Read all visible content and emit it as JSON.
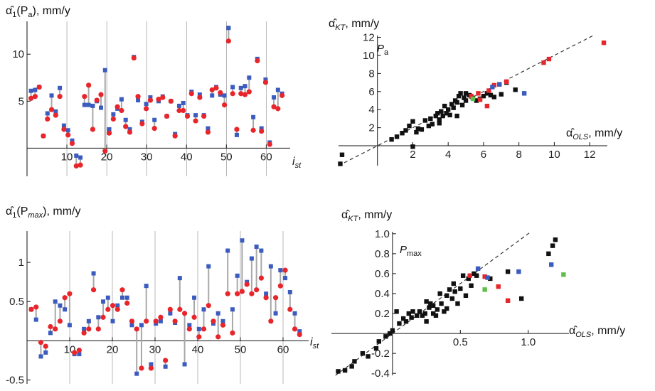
{
  "colors": {
    "blue": "#3b5bbf",
    "red": "#e8252a",
    "black": "#111111",
    "green": "#5fbf4a",
    "connector": "#a8a8a8",
    "grid": "#8a8a8a"
  },
  "chart_data": [
    {
      "type": "scatter",
      "ylabel_main": "α̂",
      "ylabel_sub": "1",
      "ylabel_arg": "(P",
      "ylabel_arg_sub": "a",
      "ylabel_unit": "), mm/y",
      "xlabel_main": "i",
      "xlabel_sub": "st",
      "xlim": [
        0,
        66
      ],
      "ylim": [
        -3,
        13.5
      ],
      "xticks": [
        10,
        20,
        30,
        40,
        50,
        60
      ],
      "yticks": [
        5,
        10
      ],
      "series": [
        {
          "name": "blue",
          "values": [
            6.1,
            6.2,
            6.5,
            1.3,
            3.7,
            5.6,
            3.9,
            6.4,
            2.4,
            1.9,
            0.8,
            -0.8,
            -1.0,
            4.6,
            4.6,
            4.5,
            5.0,
            4.3,
            8.3,
            2.0,
            3.6,
            4.2,
            5.2,
            3.0,
            2.0,
            9.7,
            5.1,
            2.8,
            4.7,
            5.4,
            3.0,
            5.0,
            5.5,
            3.4,
            5.0,
            1.5,
            4.5,
            4.8,
            3.5,
            6.0,
            3.5,
            5.7,
            3.5,
            2.1,
            5.6,
            6.5,
            5.7,
            5.6,
            12.8,
            6.5,
            1.4,
            6.4,
            6.6,
            7.5,
            3.3,
            9.5,
            2.1,
            7.3,
            0.6,
            5.4,
            6.2,
            5.8
          ]
        },
        {
          "name": "red",
          "values": [
            5.3,
            5.5,
            6.5,
            1.3,
            3.1,
            4.1,
            3.5,
            5.5,
            2.0,
            1.4,
            0.5,
            -1.9,
            -1.8,
            5.5,
            6.7,
            2.0,
            5.1,
            5.7,
            -0.3,
            1.6,
            3.1,
            4.4,
            4.0,
            2.3,
            1.7,
            9.6,
            5.5,
            2.6,
            4.2,
            5.1,
            2.1,
            5.2,
            5.4,
            3.4,
            5.0,
            1.3,
            4.0,
            4.0,
            3.4,
            5.8,
            2.9,
            5.4,
            3.4,
            1.7,
            6.2,
            6.4,
            5.9,
            4.6,
            11.4,
            5.8,
            2.0,
            5.8,
            5.7,
            6.0,
            1.9,
            9.3,
            1.8,
            7.0,
            0.4,
            4.4,
            4.2,
            5.6
          ]
        }
      ]
    },
    {
      "type": "scatter",
      "ylabel_main": "α̂",
      "ylabel_sub": "KT",
      "ylabel_unit": ", mm/y",
      "xlabel_main": "α̂",
      "xlabel_sub": "OLS",
      "xlabel_unit": ", mm/y",
      "inset_main": "P",
      "inset_sub": "a",
      "xlim": [
        -2.2,
        13
      ],
      "ylim": [
        -2.2,
        12.2
      ],
      "xticks": [
        2,
        4,
        6,
        8,
        10,
        12
      ],
      "yticks": [
        2,
        4,
        6,
        8,
        10,
        12
      ],
      "diagonal": true,
      "series": [
        {
          "name": "black",
          "points": [
            [
              0.8,
              0.7
            ],
            [
              1.1,
              1.0
            ],
            [
              1.4,
              1.4
            ],
            [
              1.6,
              1.7
            ],
            [
              1.8,
              2.2
            ],
            [
              2.0,
              2.7
            ],
            [
              2.3,
              1.9
            ],
            [
              2.5,
              1.8
            ],
            [
              2.7,
              2.8
            ],
            [
              2.9,
              2.2
            ],
            [
              3.0,
              3.0
            ],
            [
              3.1,
              2.4
            ],
            [
              3.3,
              3.3
            ],
            [
              3.4,
              3.6
            ],
            [
              3.5,
              2.9
            ],
            [
              3.6,
              3.8
            ],
            [
              3.7,
              3.3
            ],
            [
              3.8,
              4.4
            ],
            [
              3.9,
              3.6
            ],
            [
              4.0,
              4.0
            ],
            [
              4.1,
              3.4
            ],
            [
              4.2,
              4.6
            ],
            [
              4.3,
              4.2
            ],
            [
              4.4,
              5.0
            ],
            [
              4.5,
              4.8
            ],
            [
              4.6,
              5.5
            ],
            [
              4.7,
              5.8
            ],
            [
              4.8,
              4.5
            ],
            [
              4.9,
              5.3
            ],
            [
              5.0,
              5.0
            ],
            [
              5.2,
              5.6
            ],
            [
              5.4,
              5.3
            ],
            [
              5.6,
              5.0
            ],
            [
              5.8,
              5.2
            ],
            [
              6.0,
              5.5
            ],
            [
              6.2,
              5.8
            ],
            [
              6.4,
              5.6
            ],
            [
              6.6,
              5.4
            ],
            [
              7.0,
              5.7
            ],
            [
              7.3,
              7.0
            ],
            [
              7.8,
              6.2
            ],
            [
              3.5,
              2.5
            ],
            [
              4.5,
              3.3
            ],
            [
              5.0,
              5.8
            ],
            [
              2.2,
              1.5
            ],
            [
              -2.0,
              -1.0
            ],
            [
              -2.1,
              -2.0
            ],
            [
              2.0,
              -0.1
            ]
          ]
        },
        {
          "name": "red",
          "points": [
            [
              5.8,
              5.1
            ],
            [
              5.7,
              5.8
            ],
            [
              5.3,
              5.5
            ],
            [
              6.6,
              6.7
            ],
            [
              6.9,
              6.8
            ],
            [
              7.3,
              7.1
            ],
            [
              6.2,
              4.4
            ],
            [
              9.4,
              9.2
            ],
            [
              9.7,
              9.6
            ],
            [
              12.8,
              11.4
            ],
            [
              6.3,
              6.1
            ]
          ]
        },
        {
          "name": "blue",
          "points": [
            [
              8.3,
              5.8
            ],
            [
              6.5,
              6.5
            ],
            [
              6.9,
              6.8
            ]
          ]
        },
        {
          "name": "green",
          "points": [
            [
              5.4,
              5.2
            ]
          ]
        }
      ]
    },
    {
      "type": "scatter",
      "ylabel_main": "α̂",
      "ylabel_sub": "1",
      "ylabel_arg": "(P",
      "ylabel_arg_sub": "max",
      "ylabel_unit": "), mm/y",
      "xlabel_main": "i",
      "xlabel_sub": "st",
      "xlim": [
        0,
        66
      ],
      "ylim": [
        -0.55,
        1.4
      ],
      "xticks": [
        10,
        20,
        30,
        40,
        50,
        60
      ],
      "yticks": [
        -0.5,
        0.5,
        1.0
      ],
      "series": [
        {
          "name": "blue",
          "values": [
            0.4,
            0.27,
            -0.2,
            -0.15,
            0.1,
            0.5,
            0.45,
            0.4,
            0.2,
            -0.17,
            -0.17,
            0.15,
            0.25,
            0.86,
            0.3,
            0.5,
            0.55,
            0.25,
            0.45,
            0.55,
            0.55,
            0.2,
            -0.42,
            0.2,
            0.7,
            -0.3,
            0.22,
            0.25,
            -0.33,
            0.35,
            0.23,
            0.8,
            -0.3,
            0.2,
            0.55,
            0.15,
            0.4,
            0.95,
            0.22,
            0.35,
            0.25,
            1.15,
            0.4,
            0.83,
            1.28,
            0.75,
            1.05,
            1.2,
            1.15,
            0.6,
            0.95,
            0.35,
            0.9,
            0.8,
            0.62,
            0.35,
            0.12
          ]
        },
        {
          "name": "red",
          "values": [
            0.4,
            0.43,
            -0.02,
            -0.07,
            0.18,
            0.15,
            0.25,
            0.55,
            0.6,
            -0.15,
            -0.12,
            0.1,
            0.15,
            0.65,
            0.15,
            0.3,
            0.4,
            0.45,
            0.4,
            0.65,
            0.48,
            0.25,
            0.15,
            -0.35,
            0.25,
            -0.35,
            0.25,
            0.3,
            -0.25,
            0.4,
            0.25,
            0.4,
            0.35,
            0.15,
            0.3,
            0.05,
            0.15,
            0.45,
            0.25,
            0.05,
            0.2,
            0.6,
            0.1,
            0.6,
            0.63,
            0.72,
            0.6,
            0.65,
            0.8,
            0.55,
            0.25,
            0.55,
            0.7,
            0.9,
            0.4,
            0.15,
            0.08
          ]
        }
      ]
    },
    {
      "type": "scatter",
      "ylabel_main": "α̂",
      "ylabel_sub": "KT",
      "ylabel_unit": ", mm/y",
      "xlabel_main": "α̂",
      "xlabel_sub": "OLS",
      "xlabel_unit": ", mm/y",
      "inset_main": "P",
      "inset_sub": "max",
      "xlim": [
        -0.45,
        1.3
      ],
      "ylim": [
        -0.42,
        1.02
      ],
      "xticks": [
        0.5,
        1.0
      ],
      "xtick_labels": [
        "0.5",
        "1.0"
      ],
      "yticks": [
        -0.4,
        -0.2,
        0.2,
        0.4,
        0.6,
        0.8,
        1.0
      ],
      "ytick_labels": [
        "-0.4",
        "-0.2",
        "0.2",
        "0.4",
        "0.6",
        "0.8",
        "1.0"
      ],
      "diagonal": true,
      "series": [
        {
          "name": "black",
          "points": [
            [
              -0.4,
              -0.38
            ],
            [
              -0.35,
              -0.37
            ],
            [
              -0.3,
              -0.33
            ],
            [
              -0.28,
              -0.28
            ],
            [
              -0.22,
              -0.2
            ],
            [
              -0.18,
              -0.23
            ],
            [
              -0.12,
              -0.15
            ],
            [
              -0.1,
              -0.08
            ],
            [
              -0.05,
              -0.03
            ],
            [
              -0.02,
              0.0
            ],
            [
              0.0,
              0.03
            ],
            [
              0.03,
              0.22
            ],
            [
              0.05,
              0.1
            ],
            [
              0.08,
              0.15
            ],
            [
              0.1,
              0.12
            ],
            [
              0.12,
              0.2
            ],
            [
              0.14,
              0.16
            ],
            [
              0.15,
              0.22
            ],
            [
              0.18,
              0.18
            ],
            [
              0.2,
              0.22
            ],
            [
              0.22,
              0.18
            ],
            [
              0.24,
              0.2
            ],
            [
              0.25,
              0.32
            ],
            [
              0.27,
              0.26
            ],
            [
              0.28,
              0.3
            ],
            [
              0.3,
              0.2
            ],
            [
              0.3,
              0.28
            ],
            [
              0.32,
              0.18
            ],
            [
              0.33,
              0.24
            ],
            [
              0.35,
              0.4
            ],
            [
              0.36,
              0.3
            ],
            [
              0.38,
              0.22
            ],
            [
              0.4,
              0.38
            ],
            [
              0.42,
              0.44
            ],
            [
              0.44,
              0.35
            ],
            [
              0.45,
              0.5
            ],
            [
              0.46,
              0.42
            ],
            [
              0.48,
              0.3
            ],
            [
              0.5,
              0.45
            ],
            [
              0.52,
              0.58
            ],
            [
              0.54,
              0.38
            ],
            [
              0.56,
              0.55
            ],
            [
              0.58,
              0.48
            ],
            [
              0.6,
              0.6
            ],
            [
              0.62,
              0.58
            ],
            [
              0.72,
              0.55
            ],
            [
              0.85,
              0.62
            ],
            [
              0.95,
              0.35
            ],
            [
              1.15,
              0.8
            ],
            [
              1.18,
              0.88
            ],
            [
              1.2,
              0.94
            ],
            [
              0.25,
              0.12
            ],
            [
              0.4,
              0.25
            ]
          ]
        },
        {
          "name": "red",
          "points": [
            [
              0.57,
              0.58
            ],
            [
              0.68,
              0.57
            ],
            [
              0.78,
              0.47
            ],
            [
              0.85,
              0.33
            ]
          ]
        },
        {
          "name": "blue",
          "points": [
            [
              0.63,
              0.65
            ],
            [
              0.7,
              0.56
            ],
            [
              0.93,
              0.62
            ],
            [
              1.17,
              0.69
            ]
          ]
        },
        {
          "name": "green",
          "points": [
            [
              0.68,
              0.44
            ],
            [
              1.26,
              0.59
            ]
          ]
        }
      ]
    }
  ]
}
